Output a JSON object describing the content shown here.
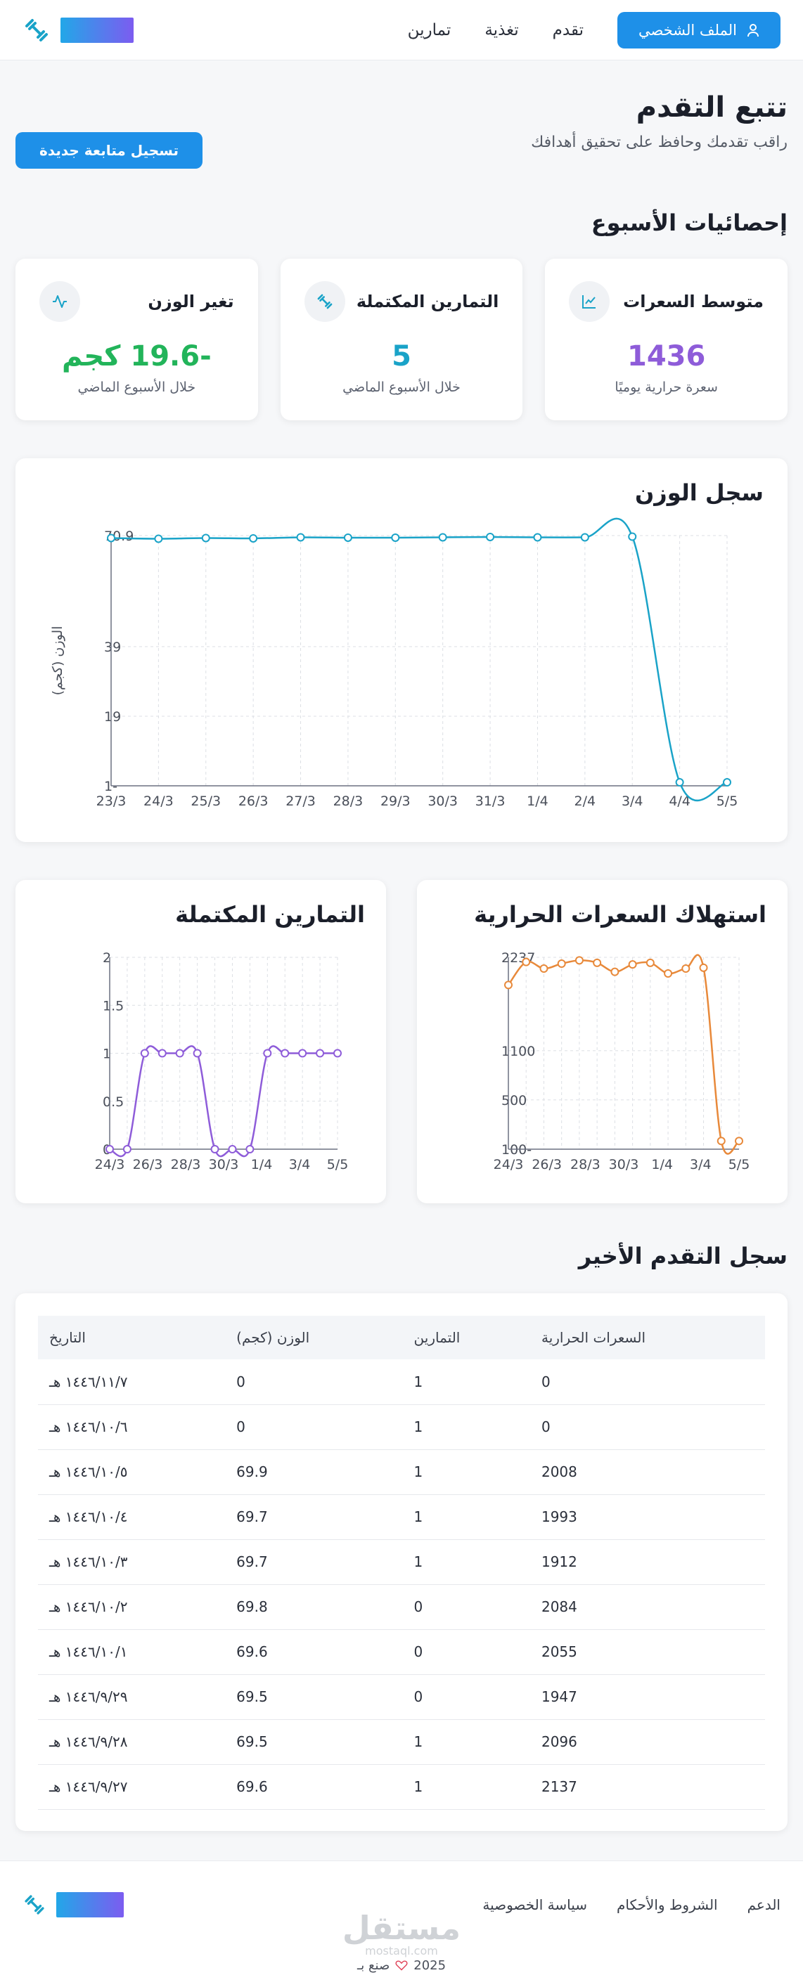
{
  "header": {
    "profile_label": "الملف الشخصي",
    "nav": [
      "تقدم",
      "تغذية",
      "تمارين"
    ]
  },
  "page": {
    "title": "تتبع التقدم",
    "subtitle": "راقب تقدمك وحافظ على تحقيق أهدافك",
    "new_entry_label": "تسجيل متابعة جديدة"
  },
  "weekly": {
    "title": "إحصائيات الأسبوع",
    "cards": [
      {
        "label": "متوسط السعرات",
        "value": "1436",
        "note": "سعرة حرارية يوميًا",
        "color": "#8e5cd9",
        "icon": "chart-line-icon"
      },
      {
        "label": "التمارين المكتملة",
        "value": "5",
        "note": "خلال الأسبوع الماضي",
        "color": "#1aa3c8",
        "icon": "dumbbell-icon"
      },
      {
        "label": "تغير الوزن",
        "value": "-19.6 كجم",
        "note": "خلال الأسبوع الماضي",
        "color": "#22b45a",
        "icon": "activity-icon"
      }
    ]
  },
  "chart_data": [
    {
      "type": "line",
      "title": "سجل الوزن",
      "ylabel": "الوزن (كجم)",
      "x": [
        "23/3",
        "24/3",
        "25/3",
        "26/3",
        "27/3",
        "28/3",
        "29/3",
        "30/3",
        "31/3",
        "1/4",
        "2/4",
        "3/4",
        "4/4",
        "5/5"
      ],
      "values": [
        70.2,
        70.0,
        70.2,
        70.1,
        70.4,
        70.3,
        70.3,
        70.4,
        70.5,
        70.4,
        70.4,
        70.6,
        0,
        0
      ],
      "yticks": [
        70.9,
        39,
        19,
        -1
      ],
      "ylim": [
        -1,
        70.9
      ],
      "color": "#1aa3c8"
    },
    {
      "type": "line",
      "title": "استهلاك السعرات الحرارية",
      "x": [
        "24/3",
        "26/3",
        "28/3",
        "30/3",
        "1/4",
        "3/4",
        "5/5"
      ],
      "points": [
        1900,
        2180,
        2100,
        2160,
        2200,
        2170,
        2060,
        2150,
        2170,
        2040,
        2100,
        2110,
        0,
        0
      ],
      "yticks": [
        2237,
        1100,
        500,
        -100
      ],
      "ylim": [
        -100,
        2237
      ],
      "color": "#e8893a"
    },
    {
      "type": "line",
      "title": "التمارين المكتملة",
      "x": [
        "24/3",
        "26/3",
        "28/3",
        "30/3",
        "1/4",
        "3/4",
        "5/5"
      ],
      "points": [
        0,
        0,
        1,
        1,
        1,
        1,
        0,
        0,
        0,
        1,
        1,
        1,
        1,
        1
      ],
      "yticks": [
        2,
        1.5,
        1,
        0.5,
        0
      ],
      "ylim": [
        0,
        2
      ],
      "color": "#8e5cd9"
    }
  ],
  "history": {
    "title": "سجل التقدم الأخير",
    "columns": [
      "التاريخ",
      "الوزن (كجم)",
      "التمارين",
      "السعرات الحرارية"
    ],
    "rows": [
      [
        "١٤٤٦/١١/٧ هـ",
        "0",
        "1",
        "0"
      ],
      [
        "١٤٤٦/١٠/٦ هـ",
        "0",
        "1",
        "0"
      ],
      [
        "١٤٤٦/١٠/٥ هـ",
        "69.9",
        "1",
        "2008"
      ],
      [
        "١٤٤٦/١٠/٤ هـ",
        "69.7",
        "1",
        "1993"
      ],
      [
        "١٤٤٦/١٠/٣ هـ",
        "69.7",
        "1",
        "1912"
      ],
      [
        "١٤٤٦/١٠/٢ هـ",
        "69.8",
        "0",
        "2084"
      ],
      [
        "١٤٤٦/١٠/١ هـ",
        "69.6",
        "0",
        "2055"
      ],
      [
        "١٤٤٦/٩/٢٩ هـ",
        "69.5",
        "0",
        "1947"
      ],
      [
        "١٤٤٦/٩/٢٨ هـ",
        "69.5",
        "1",
        "2096"
      ],
      [
        "١٤٤٦/٩/٢٧ هـ",
        "69.6",
        "1",
        "2137"
      ]
    ]
  },
  "footer": {
    "links": [
      "الدعم",
      "الشروط والأحكام",
      "سياسة الخصوصية"
    ],
    "watermark": "مستقل",
    "watermark_sub": "mostaql.com",
    "year": "2025",
    "made_by": "صنع بـ"
  }
}
